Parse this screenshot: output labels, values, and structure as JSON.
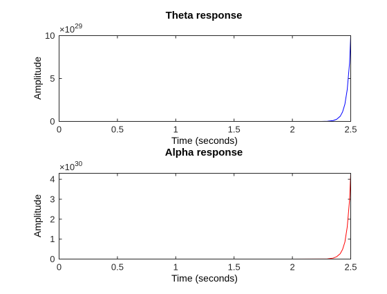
{
  "chart_data": [
    {
      "type": "line",
      "title": "Theta response",
      "xlabel": "Time (seconds)",
      "ylabel": "Amplitude",
      "xlim": [
        0,
        2.5
      ],
      "ylim": [
        0,
        10
      ],
      "x_ticks": [
        "0",
        "0.5",
        "1",
        "1.5",
        "2",
        "2.5"
      ],
      "y_ticks": [
        "0",
        "5",
        "10"
      ],
      "exponent_base": "×10",
      "exponent_power": "29",
      "grid": false,
      "series": [
        {
          "color": "#0000ff",
          "x": [
            0,
            0.5,
            1.0,
            1.5,
            2.0,
            2.25,
            2.3,
            2.35,
            2.38,
            2.41,
            2.43,
            2.45,
            2.47,
            2.49,
            2.5
          ],
          "y": [
            0,
            0,
            0,
            0,
            0,
            0.005,
            0.02,
            0.1,
            0.25,
            0.6,
            1.1,
            2.0,
            3.7,
            6.8,
            10.0
          ]
        }
      ]
    },
    {
      "type": "line",
      "title": "Alpha response",
      "xlabel": "Time (seconds)",
      "ylabel": "Amplitude",
      "xlim": [
        0,
        2.5
      ],
      "ylim": [
        0,
        4.3
      ],
      "x_ticks": [
        "0",
        "0.5",
        "1",
        "1.5",
        "2",
        "2.5"
      ],
      "y_ticks": [
        "0",
        "1",
        "2",
        "3",
        "4"
      ],
      "exponent_base": "×10",
      "exponent_power": "30",
      "grid": false,
      "series": [
        {
          "color": "#ff0000",
          "x": [
            0,
            0.5,
            1.0,
            1.5,
            2.0,
            2.25,
            2.3,
            2.35,
            2.38,
            2.41,
            2.43,
            2.45,
            2.47,
            2.49,
            2.5
          ],
          "y": [
            0,
            0,
            0,
            0,
            0,
            0.003,
            0.01,
            0.05,
            0.12,
            0.27,
            0.48,
            0.85,
            1.6,
            2.95,
            4.3
          ]
        }
      ]
    }
  ]
}
